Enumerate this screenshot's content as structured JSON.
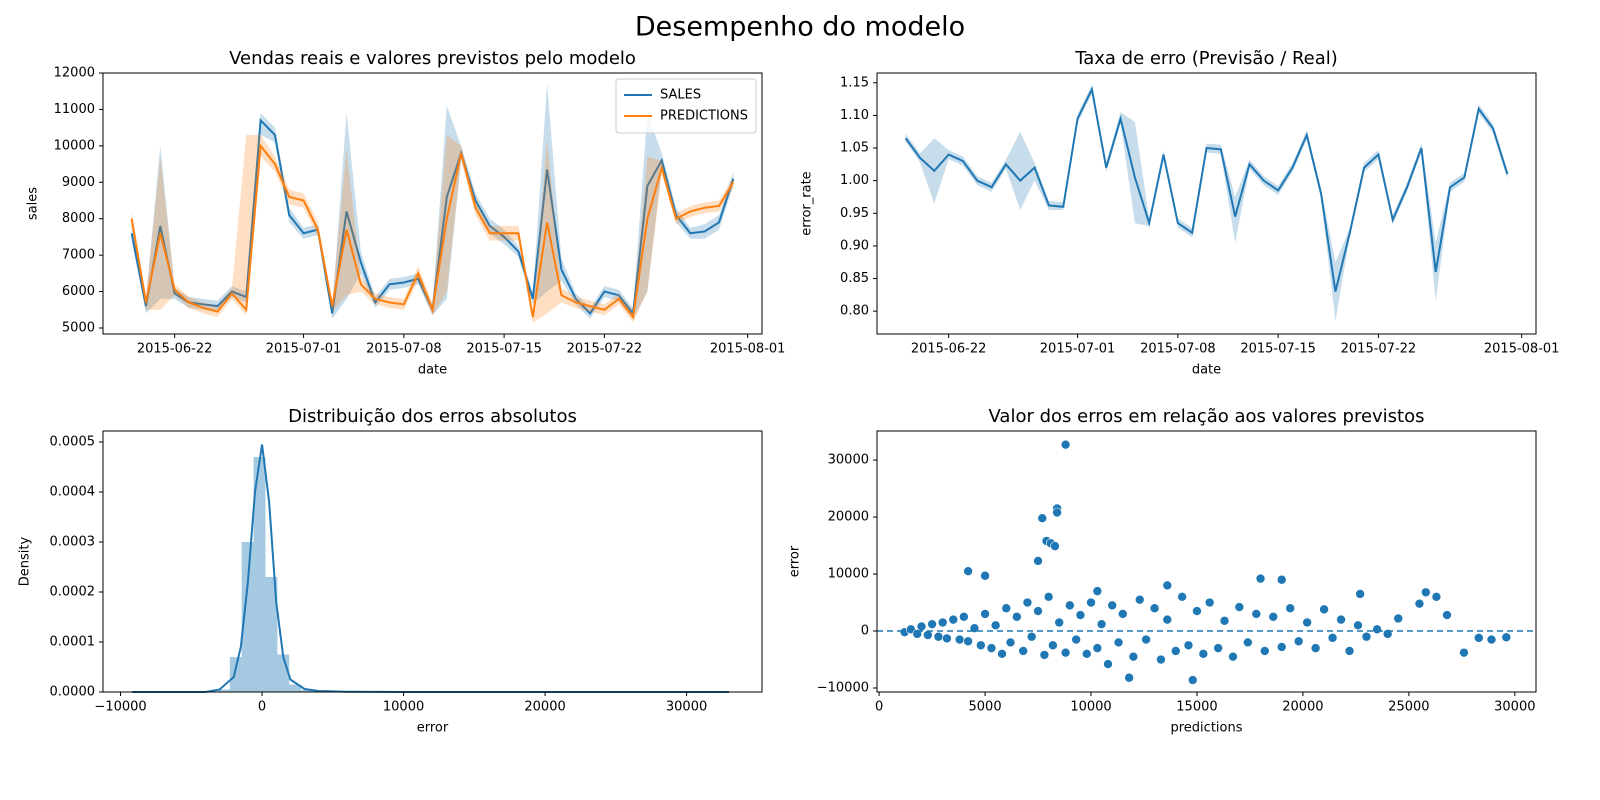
{
  "title": "Desempenho do modelo",
  "chart_data": [
    {
      "type": "line",
      "title": "Vendas reais e valores previstos pelo modelo",
      "xlabel": "date",
      "ylabel": "sales",
      "legend": "upper right",
      "x": [
        "2015-06-19",
        "2015-06-20",
        "2015-06-21",
        "2015-06-22",
        "2015-06-23",
        "2015-06-24",
        "2015-06-25",
        "2015-06-26",
        "2015-06-27",
        "2015-06-28",
        "2015-06-29",
        "2015-06-30",
        "2015-07-01",
        "2015-07-02",
        "2015-07-03",
        "2015-07-04",
        "2015-07-05",
        "2015-07-06",
        "2015-07-07",
        "2015-07-08",
        "2015-07-09",
        "2015-07-10",
        "2015-07-11",
        "2015-07-12",
        "2015-07-13",
        "2015-07-14",
        "2015-07-15",
        "2015-07-16",
        "2015-07-17",
        "2015-07-18",
        "2015-07-19",
        "2015-07-20",
        "2015-07-21",
        "2015-07-22",
        "2015-07-23",
        "2015-07-24",
        "2015-07-25",
        "2015-07-26",
        "2015-07-27",
        "2015-07-28",
        "2015-07-29",
        "2015-07-30",
        "2015-07-31"
      ],
      "series": [
        {
          "name": "SALES",
          "color": "#1f77b4",
          "values": [
            7600,
            5600,
            7800,
            5950,
            5700,
            5650,
            5600,
            6000,
            5850,
            10700,
            10300,
            8100,
            7600,
            7700,
            5400,
            8200,
            6800,
            5700,
            6200,
            6250,
            6350,
            5500,
            8600,
            9800,
            8500,
            7800,
            7500,
            7100,
            5800,
            9350,
            6600,
            5800,
            5400,
            6000,
            5900,
            5400,
            8900,
            9600,
            8100,
            7600,
            7650,
            7900,
            9100
          ],
          "lower": [
            7400,
            5400,
            5800,
            5800,
            5550,
            5500,
            5450,
            5850,
            5700,
            10300,
            10100,
            7900,
            7450,
            7550,
            5250,
            5800,
            6500,
            5550,
            6050,
            6100,
            6200,
            5350,
            5800,
            9600,
            8300,
            7600,
            7300,
            6950,
            5650,
            6000,
            6300,
            5650,
            5250,
            5850,
            5750,
            5250,
            6000,
            9400,
            7900,
            7450,
            7450,
            7700,
            8900
          ],
          "upper": [
            7800,
            5800,
            10000,
            6100,
            5850,
            5800,
            5750,
            6150,
            6000,
            10900,
            10500,
            8300,
            7750,
            7850,
            5550,
            10900,
            7100,
            5850,
            6350,
            6400,
            6500,
            5650,
            11100,
            10000,
            8700,
            8000,
            7700,
            7250,
            5950,
            11700,
            6900,
            5950,
            5550,
            6150,
            6050,
            5550,
            10900,
            9800,
            8300,
            7750,
            7850,
            8100,
            9300
          ]
        },
        {
          "name": "PREDICTIONS",
          "color": "#ff7f0e",
          "values": [
            8000,
            5700,
            7600,
            6050,
            5700,
            5550,
            5450,
            5950,
            5500,
            10000,
            9500,
            8600,
            8500,
            7700,
            5600,
            7700,
            6200,
            5800,
            5700,
            5650,
            6500,
            5500,
            8000,
            9800,
            8300,
            7600,
            7600,
            7600,
            5300,
            7900,
            5900,
            5700,
            5600,
            5500,
            5800,
            5300,
            8000,
            9400,
            8000,
            8200,
            8300,
            8350,
            9000
          ],
          "lower": [
            7800,
            5500,
            5500,
            5900,
            5550,
            5400,
            5300,
            5800,
            5350,
            9700,
            9300,
            8400,
            8300,
            7500,
            5450,
            5900,
            6000,
            5650,
            5550,
            5500,
            6300,
            5350,
            6000,
            9600,
            8100,
            7400,
            7400,
            7400,
            5150,
            5400,
            5700,
            5550,
            5450,
            5350,
            5650,
            5150,
            6000,
            9200,
            7850,
            8050,
            8150,
            8200,
            8850
          ],
          "upper": [
            8200,
            5900,
            9700,
            6200,
            5850,
            5700,
            5600,
            6100,
            10300,
            10300,
            9700,
            8800,
            8700,
            7900,
            5750,
            9900,
            6400,
            5950,
            5850,
            5800,
            6700,
            5650,
            10300,
            10000,
            8500,
            7800,
            7800,
            7800,
            5450,
            10200,
            6100,
            5850,
            5750,
            5650,
            5950,
            5450,
            9700,
            9600,
            8150,
            8350,
            8450,
            8500,
            9150
          ]
        }
      ],
      "xlim": [
        "2015-06-17",
        "2015-08-02"
      ],
      "xticks": [
        "2015-06-22",
        "2015-07-01",
        "2015-07-08",
        "2015-07-15",
        "2015-07-22",
        "2015-08-01"
      ],
      "ylim": [
        4835,
        12000
      ],
      "yticks": [
        5000,
        6000,
        7000,
        8000,
        9000,
        10000,
        11000,
        12000
      ]
    },
    {
      "type": "line",
      "title": "Taxa de erro (Previsão / Real)",
      "xlabel": "date",
      "ylabel": "error_rate",
      "x": [
        "2015-06-19",
        "2015-06-20",
        "2015-06-21",
        "2015-06-22",
        "2015-06-23",
        "2015-06-24",
        "2015-06-25",
        "2015-06-26",
        "2015-06-27",
        "2015-06-28",
        "2015-06-29",
        "2015-06-30",
        "2015-07-01",
        "2015-07-02",
        "2015-07-03",
        "2015-07-04",
        "2015-07-05",
        "2015-07-06",
        "2015-07-07",
        "2015-07-08",
        "2015-07-09",
        "2015-07-10",
        "2015-07-11",
        "2015-07-12",
        "2015-07-13",
        "2015-07-14",
        "2015-07-15",
        "2015-07-16",
        "2015-07-17",
        "2015-07-18",
        "2015-07-19",
        "2015-07-20",
        "2015-07-21",
        "2015-07-22",
        "2015-07-23",
        "2015-07-24",
        "2015-07-25",
        "2015-07-26",
        "2015-07-27",
        "2015-07-28",
        "2015-07-29",
        "2015-07-30",
        "2015-07-31"
      ],
      "series": [
        {
          "color": "#1f77b4",
          "values": [
            1.065,
            1.035,
            1.015,
            1.04,
            1.03,
            1.0,
            0.99,
            1.025,
            1.0,
            1.02,
            0.962,
            0.96,
            1.095,
            1.14,
            1.02,
            1.095,
            1.005,
            0.935,
            1.04,
            0.935,
            0.92,
            1.05,
            1.048,
            0.945,
            1.025,
            1.0,
            0.985,
            1.02,
            1.07,
            0.98,
            0.83,
            0.92,
            1.02,
            1.04,
            0.94,
            0.99,
            1.05,
            0.86,
            0.99,
            1.005,
            1.11,
            1.08,
            1.01
          ],
          "lower": [
            1.06,
            1.028,
            0.965,
            1.033,
            1.023,
            0.993,
            0.983,
            1.018,
            0.955,
            1.0,
            0.955,
            0.955,
            1.088,
            1.133,
            1.013,
            1.088,
            0.935,
            0.93,
            1.033,
            0.928,
            0.913,
            1.043,
            1.041,
            0.905,
            1.018,
            0.993,
            0.978,
            1.013,
            1.063,
            0.973,
            0.785,
            0.913,
            1.013,
            1.033,
            0.933,
            0.983,
            1.043,
            0.815,
            0.983,
            0.998,
            1.103,
            1.073,
            1.003
          ],
          "upper": [
            1.072,
            1.042,
            1.065,
            1.047,
            1.037,
            1.007,
            0.997,
            1.032,
            1.075,
            1.027,
            0.969,
            0.967,
            1.102,
            1.147,
            1.027,
            1.105,
            1.09,
            0.942,
            1.047,
            0.942,
            0.927,
            1.057,
            1.055,
            0.975,
            1.032,
            1.007,
            0.992,
            1.027,
            1.077,
            0.987,
            0.875,
            0.927,
            1.027,
            1.047,
            0.947,
            0.997,
            1.057,
            0.905,
            0.997,
            1.012,
            1.117,
            1.087,
            1.017
          ]
        }
      ],
      "xlim": [
        "2015-06-17",
        "2015-08-02"
      ],
      "xticks": [
        "2015-06-22",
        "2015-07-01",
        "2015-07-08",
        "2015-07-15",
        "2015-07-22",
        "2015-08-01"
      ],
      "ylim": [
        0.765,
        1.165
      ],
      "yticks": [
        {
          "value": 0.8,
          "label": "0.80"
        },
        0.85,
        {
          "value": 0.9,
          "label": "0.90"
        },
        0.95,
        {
          "value": 1,
          "label": "1.00"
        },
        1.05,
        {
          "value": 1.1,
          "label": "1.10"
        },
        1.15
      ]
    },
    {
      "type": "histogram",
      "title": "Distribuição dos erros absolutos",
      "xlabel": "error",
      "ylabel": "Density",
      "color": "#1f77b4",
      "bins": [
        -9000,
        -8160,
        -7320,
        -6480,
        -5640,
        -4800,
        -3960,
        -3120,
        -2280,
        -1440,
        -600,
        240,
        1080,
        1920,
        2760,
        3600,
        4440,
        5280,
        6120,
        6960,
        7800,
        8640,
        9480,
        10320,
        11160,
        12000,
        12840,
        13680,
        14520,
        15360,
        16200,
        17040,
        17880,
        18720,
        19560,
        20400,
        21240,
        22080,
        22920,
        23760,
        24600,
        25440,
        26280,
        27120,
        27960,
        28800,
        29640,
        30480,
        31320,
        32160,
        33000
      ],
      "values": [
        0,
        0,
        0,
        0,
        0,
        0,
        1e-06,
        5e-06,
        7e-05,
        0.0003,
        0.00047,
        0.00023,
        7.5e-05,
        1.5e-05,
        4e-06,
        1e-06,
        0,
        0,
        0,
        0,
        0,
        0,
        0,
        0,
        0,
        0,
        0,
        0,
        0,
        0,
        0,
        0,
        0,
        0,
        0,
        0,
        0,
        0,
        0,
        0,
        0,
        0,
        0,
        0,
        0,
        0,
        0,
        0,
        0,
        0
      ],
      "kde": {
        "x": [
          -9200,
          -4000,
          -3000,
          -2000,
          -1500,
          -1000,
          -500,
          0,
          500,
          1000,
          1500,
          2000,
          3000,
          4000,
          6000,
          10000,
          20000,
          33000
        ],
        "y": [
          0,
          0,
          5e-06,
          3e-05,
          9e-05,
          0.00022,
          0.0004,
          0.000495,
          0.00038,
          0.00018,
          7e-05,
          2.5e-05,
          6e-06,
          2e-06,
          5e-07,
          0,
          0,
          0
        ]
      },
      "xlim": [
        -11240,
        35330
      ],
      "xticks": [
        {
          "value": -10000,
          "label": "−10000"
        },
        0,
        10000,
        20000,
        30000
      ],
      "ylim": [
        0,
        0.000522
      ],
      "yticks": [
        {
          "value": 0,
          "label": "0.0000"
        },
        0.0001,
        0.0002,
        0.0003,
        0.0004,
        0.0005
      ]
    },
    {
      "type": "scatter",
      "title": "Valor dos erros em relação aos valores previstos",
      "xlabel": "predictions",
      "ylabel": "error",
      "color": "#1f77b4",
      "hline": 0,
      "x": [
        1200,
        1500,
        1800,
        2000,
        2300,
        2500,
        2800,
        3000,
        3200,
        3500,
        3800,
        4000,
        4200,
        4500,
        4800,
        5000,
        5300,
        5500,
        5800,
        6000,
        6200,
        6500,
        6800,
        7000,
        7200,
        7500,
        7800,
        8000,
        8200,
        8500,
        8800,
        9000,
        9300,
        9500,
        9800,
        10000,
        10300,
        10500,
        10800,
        11000,
        11300,
        11500,
        12000,
        12300,
        12600,
        13000,
        13300,
        13600,
        14000,
        14300,
        14600,
        15000,
        15300,
        15600,
        16000,
        16300,
        16700,
        17000,
        17400,
        17800,
        18200,
        18600,
        19000,
        19400,
        19800,
        20200,
        20600,
        21000,
        21400,
        21800,
        22200,
        22600,
        23000,
        23500,
        24000,
        8800,
        8400,
        8400,
        7700,
        7900,
        8100,
        8300,
        7500,
        4200,
        5000,
        18000,
        19000,
        11800,
        14800,
        27600,
        29600,
        28300,
        28900,
        26800,
        25800,
        26300,
        25500,
        24500,
        22700,
        10300,
        13600
      ],
      "y": [
        -200,
        300,
        -500,
        800,
        -700,
        1200,
        -1000,
        1500,
        -1300,
        2000,
        -1500,
        2500,
        -1800,
        500,
        -2500,
        3000,
        -3000,
        1000,
        -4000,
        4000,
        -2000,
        2500,
        -3500,
        5000,
        -1000,
        3500,
        -4200,
        6000,
        -2500,
        1500,
        -3800,
        4500,
        -1500,
        2800,
        -4000,
        5000,
        -3000,
        1200,
        -5800,
        4500,
        -2000,
        3000,
        -4500,
        5500,
        -1500,
        4000,
        -5000,
        2000,
        -3500,
        6000,
        -2500,
        3500,
        -4000,
        5000,
        -3000,
        1800,
        -4500,
        4200,
        -2000,
        3000,
        -3500,
        2500,
        -2800,
        4000,
        -1800,
        1500,
        -3000,
        3800,
        -1200,
        2000,
        -3500,
        1000,
        -1000,
        300,
        -500,
        32700,
        21500,
        20800,
        19800,
        15800,
        15400,
        14900,
        12300,
        10500,
        9700,
        9200,
        9000,
        -8200,
        -8600,
        -3800,
        -1100,
        -1200,
        -1500,
        2800,
        6800,
        6000,
        4800,
        2200,
        6500,
        7000,
        8000
      ],
      "xlim": [
        -100,
        31000
      ],
      "xticks": [
        0,
        5000,
        10000,
        15000,
        20000,
        25000,
        30000
      ],
      "ylim": [
        -10700,
        35100
      ],
      "yticks": [
        {
          "value": -10000,
          "label": "−10000"
        },
        0,
        10000,
        20000,
        30000
      ]
    }
  ]
}
